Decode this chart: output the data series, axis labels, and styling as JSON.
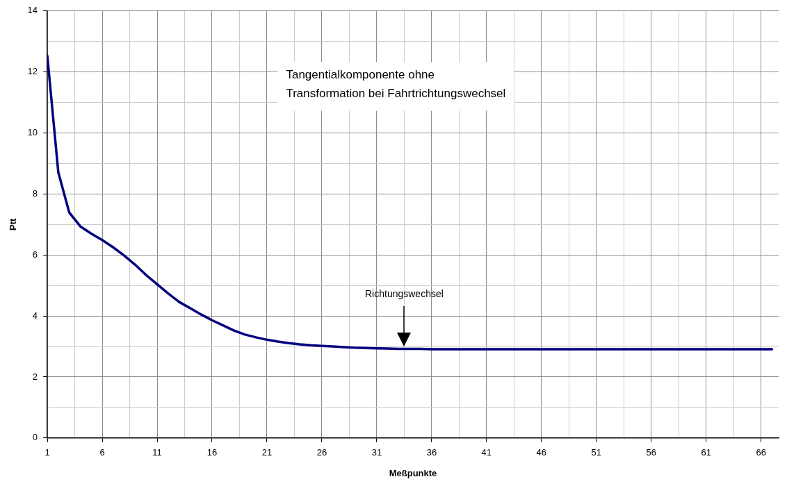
{
  "chart_data": {
    "type": "line",
    "xlabel": "Meßpunkte",
    "ylabel": "Ptt",
    "x": [
      1,
      2,
      3,
      4,
      5,
      6,
      7,
      8,
      9,
      10,
      11,
      12,
      13,
      14,
      15,
      16,
      17,
      18,
      19,
      20,
      21,
      22,
      23,
      24,
      25,
      26,
      27,
      28,
      29,
      30,
      31,
      32,
      33,
      34,
      35,
      36,
      37,
      38,
      39,
      40,
      41,
      42,
      43,
      44,
      45,
      46,
      47,
      48,
      49,
      50,
      51,
      52,
      53,
      54,
      55,
      56,
      57,
      58,
      59,
      60,
      61,
      62,
      63,
      64,
      65,
      66,
      67
    ],
    "series": [
      {
        "color": "#000080",
        "values": [
          12.53,
          8.71,
          7.39,
          6.94,
          6.7,
          6.49,
          6.25,
          5.98,
          5.68,
          5.34,
          5.04,
          4.74,
          4.46,
          4.26,
          4.05,
          3.86,
          3.69,
          3.52,
          3.39,
          3.3,
          3.22,
          3.16,
          3.11,
          3.07,
          3.04,
          3.02,
          3.0,
          2.98,
          2.96,
          2.95,
          2.94,
          2.93,
          2.92,
          2.92,
          2.92,
          2.91,
          2.91,
          2.91,
          2.91,
          2.91,
          2.91,
          2.91,
          2.91,
          2.91,
          2.91,
          2.91,
          2.91,
          2.91,
          2.91,
          2.91,
          2.91,
          2.91,
          2.91,
          2.91,
          2.91,
          2.91,
          2.91,
          2.91,
          2.91,
          2.91,
          2.91,
          2.91,
          2.91,
          2.91,
          2.91,
          2.91,
          2.91
        ]
      }
    ],
    "xlim": [
      1,
      67.6
    ],
    "xticks": [
      1,
      {
        "value": 3.5,
        "label": null
      },
      6,
      {
        "value": 8.5,
        "label": null
      },
      11,
      {
        "value": 13.5,
        "label": null
      },
      16,
      {
        "value": 18.5,
        "label": null
      },
      21,
      {
        "value": 23.5,
        "label": null
      },
      26,
      {
        "value": 28.5,
        "label": null
      },
      31,
      {
        "value": 33.5,
        "label": null
      },
      36,
      {
        "value": 38.5,
        "label": null
      },
      41,
      {
        "value": 43.5,
        "label": null
      },
      46,
      {
        "value": 48.5,
        "label": null
      },
      51,
      {
        "value": 53.5,
        "label": null
      },
      56,
      {
        "value": 58.5,
        "label": null
      },
      61,
      {
        "value": 63.5,
        "label": null
      },
      66
    ],
    "ylim": [
      0,
      14
    ],
    "yticks": [
      0,
      {
        "value": 1,
        "label": null
      },
      2,
      {
        "value": 3,
        "label": null
      },
      4,
      {
        "value": 5,
        "label": null
      },
      6,
      {
        "value": 7,
        "label": null
      },
      8,
      {
        "value": 9,
        "label": null
      },
      10,
      {
        "value": 11,
        "label": null
      },
      12,
      {
        "value": 13,
        "label": null
      },
      14
    ],
    "grid": true,
    "legend": false,
    "marker": "none",
    "line_style": "solid",
    "annotations": [
      "Tangentialkomponente ohne\nTransformation bei Fahrtrichtungswechsel",
      "Richtungswechsel"
    ]
  }
}
